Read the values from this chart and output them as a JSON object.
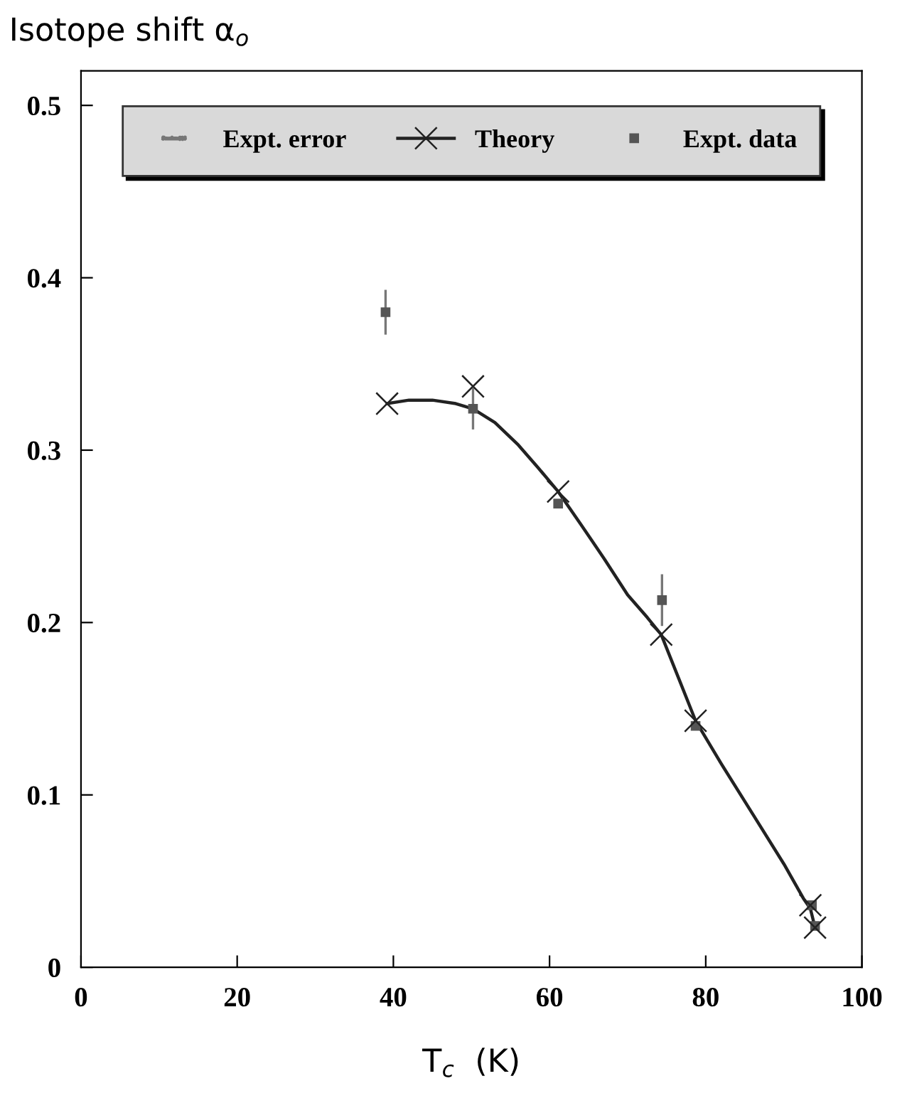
{
  "chart_data": {
    "type": "scatter",
    "ylabel": "Isotope shift α$_{o}$",
    "xlabel": "T$_{c}$  (K)",
    "xlim": [
      0,
      100
    ],
    "xticks": [
      0,
      20,
      40,
      60,
      80,
      100
    ],
    "ylim": [
      0,
      0.52
    ],
    "yticks": [
      0,
      0.1,
      0.2,
      0.3,
      0.4,
      0.5
    ],
    "legend": "top",
    "grid": false,
    "annotations": [
      "Expt. error"
    ],
    "series": [
      {
        "type": "line",
        "color": "#222222",
        "line_style": "solid",
        "x": [
          39.2,
          42,
          45,
          48,
          50.2,
          53,
          56,
          58.5,
          61.1,
          64,
          67,
          70,
          72.5,
          74.3,
          76.5,
          78.7,
          82,
          86,
          90,
          92.5,
          93.4,
          94.0
        ],
        "values": [
          0.327,
          0.329,
          0.329,
          0.327,
          0.324,
          0.316,
          0.303,
          0.29,
          0.276,
          0.257,
          0.237,
          0.216,
          0.203,
          0.193,
          0.168,
          0.143,
          0.118,
          0.089,
          0.06,
          0.04,
          0.034,
          0.023
        ]
      },
      {
        "name": "Theory",
        "color": "#222222",
        "marker": "cross",
        "x": [
          39.2,
          50.2,
          61.1,
          74.3,
          78.7,
          93.4,
          94.0
        ],
        "values": [
          0.327,
          0.337,
          0.276,
          0.193,
          0.143,
          0.036,
          0.023
        ]
      },
      {
        "name": "Expt. data",
        "color": "#555555",
        "marker": "square",
        "x": [
          39.0,
          50.2,
          61.1,
          74.4,
          78.7,
          93.6,
          94.0
        ],
        "values": [
          0.38,
          0.324,
          0.269,
          0.213,
          0.14,
          0.036,
          0.024
        ],
        "errors": [
          0.013,
          0.012,
          null,
          0.015,
          null,
          null,
          null
        ]
      }
    ]
  }
}
